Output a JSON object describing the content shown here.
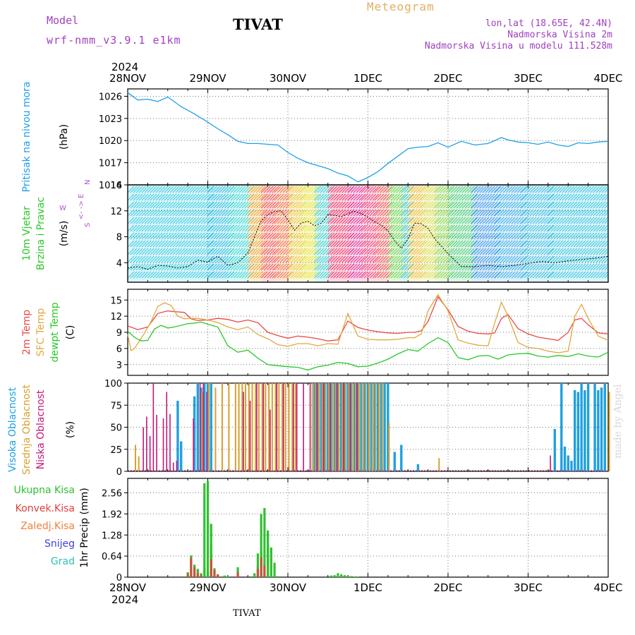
{
  "header": {
    "model_label": "Model",
    "model_name": "wrf-nmm_v3.9.1  e1km",
    "station": "TIVAT",
    "chart_title": "Meteogram",
    "lonlat": "lon,lat (18.65E, 42.4N)",
    "altitude": "Nadmorska Visina 2m",
    "model_altitude": "Nadmorska Visina u modelu 111.528m"
  },
  "footer": {
    "station": "TIVAT",
    "credit": "made by Angel"
  },
  "colors": {
    "pressure": "#1ea0e8",
    "temp2m": "#e84848",
    "sfc": "#e0a840",
    "dewpt": "#28c828",
    "cloud_high": "#20a0e0",
    "cloud_mid": "#d8a030",
    "cloud_low": "#c01878",
    "precip_total": "#30c030",
    "precip_conv": "#e04040",
    "precip_frozen": "#f08040",
    "snow": "#4040e0",
    "hail": "#30c0b0",
    "wind_dir_label": "#b050d0"
  },
  "chart_data": [
    {
      "type": "line",
      "name": "pressure",
      "title": "",
      "ylabel": "Pritisak na nivou mora",
      "yunit": "(hPa)",
      "ylim": [
        1014,
        1027
      ],
      "yticks": [
        1014,
        1017,
        1020,
        1023,
        1026
      ],
      "grid": true,
      "x_hours": [
        0,
        3,
        6,
        9,
        12,
        16,
        20,
        24,
        27,
        30,
        33,
        36,
        39,
        42,
        45,
        48,
        51,
        54,
        57,
        60,
        63,
        66,
        69,
        72,
        75,
        78,
        81,
        84,
        87,
        90,
        93,
        96,
        100,
        104,
        108,
        112,
        114,
        117,
        120,
        123,
        126,
        129,
        132,
        135,
        138,
        141,
        144
      ],
      "series": [
        {
          "values": [
            1026.5,
            1025.5,
            1025.6,
            1025.3,
            1025.9,
            1024.6,
            1023.6,
            1022.5,
            1021.6,
            1020.8,
            1019.9,
            1019.6,
            1019.6,
            1019.5,
            1019.4,
            1018.4,
            1017.6,
            1017.0,
            1016.6,
            1016.2,
            1015.6,
            1015.2,
            1014.4,
            1015.0,
            1015.8,
            1016.9,
            1017.9,
            1018.9,
            1019.1,
            1019.2,
            1019.7,
            1019.1,
            1019.9,
            1019.4,
            1019.6,
            1020.4,
            1020.1,
            1019.8,
            1019.7,
            1019.5,
            1019.8,
            1019.4,
            1019.2,
            1019.7,
            1019.6,
            1019.8,
            1019.9
          ]
        }
      ]
    },
    {
      "type": "line",
      "name": "wind",
      "title": "",
      "ylabel_lines": [
        "10m Vjetar",
        "Brzina i Pravac"
      ],
      "yunit": "(m/s)",
      "direction_label": [
        "W",
        "<- -> E",
        "S",
        "N"
      ],
      "ylim": [
        1,
        16
      ],
      "yticks": [
        4,
        8,
        12,
        16
      ],
      "grid": true,
      "x_hours": [
        0,
        3,
        6,
        9,
        12,
        15,
        18,
        21,
        24,
        27,
        30,
        33,
        36,
        38,
        40,
        42,
        44,
        46,
        48,
        50,
        52,
        54,
        56,
        58,
        60,
        62,
        64,
        66,
        68,
        70,
        72,
        74,
        76,
        78,
        80,
        82,
        84,
        86,
        88,
        90,
        92,
        96,
        100,
        104,
        108,
        112,
        116,
        120,
        124,
        128,
        132,
        136,
        140,
        144
      ],
      "series": [
        {
          "name": "speed",
          "values": [
            3.2,
            3.4,
            3.0,
            3.6,
            3.5,
            3.2,
            3.4,
            4.4,
            4.1,
            5.0,
            3.6,
            4.0,
            5.5,
            8.0,
            10.5,
            11.4,
            11.9,
            12.0,
            10.6,
            9.0,
            10.1,
            10.4,
            9.7,
            10.1,
            11.4,
            11.3,
            11.1,
            11.6,
            11.9,
            11.6,
            11.0,
            10.3,
            9.8,
            8.9,
            7.4,
            6.2,
            7.7,
            10.1,
            10.0,
            9.3,
            7.7,
            5.4,
            3.4,
            3.4,
            3.6,
            3.4,
            3.6,
            3.9,
            4.2,
            4.0,
            4.3,
            4.5,
            4.7,
            5.0
          ]
        }
      ]
    },
    {
      "type": "line",
      "name": "temperature",
      "title": "",
      "yunit": "(C)",
      "ylim": [
        1,
        17
      ],
      "yticks": [
        3,
        6,
        9,
        12,
        15
      ],
      "grid": true,
      "series": [
        {
          "name": "2m Temp",
          "x_hours": [
            0,
            3,
            6,
            9,
            12,
            13,
            15,
            17,
            19,
            21,
            24,
            27,
            30,
            33,
            36,
            39,
            42,
            45,
            48,
            51,
            54,
            57,
            60,
            63,
            66,
            69,
            72,
            75,
            78,
            81,
            84,
            86,
            88,
            90,
            93,
            96,
            99,
            102,
            105,
            108,
            110,
            112,
            114,
            117,
            120,
            123,
            126,
            129,
            132,
            134,
            136,
            138,
            141,
            144
          ],
          "values": [
            10.2,
            9.5,
            10.0,
            12.5,
            13.0,
            12.9,
            12.8,
            12.7,
            11.5,
            11.2,
            11.3,
            11.6,
            11.4,
            10.9,
            11.3,
            10.8,
            9.0,
            8.4,
            7.9,
            8.3,
            8.1,
            7.8,
            7.4,
            7.6,
            11.1,
            9.9,
            9.4,
            9.1,
            8.9,
            8.8,
            9.0,
            9.0,
            9.3,
            11.0,
            15.6,
            13.2,
            10.1,
            9.2,
            8.8,
            8.7,
            8.9,
            11.6,
            12.3,
            9.7,
            8.7,
            8.1,
            7.8,
            7.5,
            9.0,
            11.3,
            11.6,
            10.4,
            8.9,
            8.7
          ]
        },
        {
          "name": "SFC Temp",
          "x_hours": [
            0,
            1,
            2,
            3,
            5,
            7,
            9,
            11,
            13,
            15,
            17,
            19,
            21,
            24,
            27,
            30,
            33,
            36,
            39,
            42,
            45,
            48,
            51,
            54,
            57,
            60,
            63,
            66,
            69,
            72,
            75,
            78,
            81,
            84,
            86,
            88,
            90,
            93,
            96,
            99,
            102,
            105,
            108,
            110,
            112,
            114,
            117,
            120,
            123,
            126,
            129,
            132,
            134,
            136,
            138,
            141,
            144
          ],
          "values": [
            8.6,
            5.6,
            6.0,
            6.9,
            8.8,
            11.0,
            13.8,
            14.5,
            14.0,
            12.0,
            11.5,
            11.6,
            11.6,
            11.3,
            10.8,
            10.0,
            9.5,
            10.0,
            8.6,
            7.8,
            6.7,
            6.4,
            6.9,
            6.9,
            6.5,
            6.9,
            6.8,
            12.5,
            8.3,
            7.7,
            7.6,
            7.6,
            7.7,
            8.0,
            8.0,
            8.7,
            13.0,
            16.0,
            13.0,
            7.6,
            7.0,
            6.6,
            6.5,
            10.8,
            14.6,
            12.0,
            7.1,
            6.2,
            6.0,
            5.5,
            5.2,
            5.5,
            12.0,
            14.2,
            11.6,
            8.3,
            7.5
          ]
        },
        {
          "name": "dewpt Temp",
          "x_hours": [
            0,
            2,
            4,
            6,
            8,
            10,
            12,
            14,
            16,
            18,
            20,
            22,
            24,
            27,
            30,
            33,
            36,
            39,
            42,
            45,
            48,
            51,
            54,
            57,
            60,
            63,
            66,
            69,
            72,
            75,
            78,
            81,
            84,
            87,
            90,
            93,
            96,
            99,
            102,
            105,
            108,
            111,
            114,
            117,
            120,
            123,
            126,
            129,
            132,
            135,
            138,
            141,
            144
          ],
          "values": [
            9.2,
            8.1,
            7.4,
            7.5,
            9.6,
            10.3,
            9.8,
            10.0,
            10.3,
            10.6,
            10.7,
            10.9,
            10.5,
            10.0,
            6.5,
            5.3,
            5.7,
            4.2,
            3.0,
            2.8,
            2.6,
            2.5,
            2.0,
            2.6,
            2.9,
            3.4,
            3.2,
            2.6,
            2.7,
            3.3,
            4.0,
            5.0,
            5.8,
            5.5,
            6.9,
            8.0,
            7.1,
            4.3,
            3.9,
            4.6,
            4.7,
            4.0,
            4.8,
            5.0,
            5.1,
            4.6,
            4.4,
            4.7,
            4.5,
            5.0,
            4.6,
            4.4,
            5.3
          ]
        }
      ],
      "ylabel_series": [
        "2m Temp",
        "SFC Temp",
        "dewpt Temp"
      ]
    },
    {
      "type": "bar",
      "name": "cloudiness",
      "title": "",
      "yunit": "(%)",
      "ylim": [
        0,
        100
      ],
      "yticks": [
        0,
        25,
        50,
        75,
        100
      ],
      "grid": true,
      "series": [
        {
          "name": "Visoka Oblacnost",
          "x_hours": [
            15,
            16,
            20,
            21,
            22,
            23,
            24,
            25,
            56,
            57,
            58,
            59,
            60,
            61,
            62,
            63,
            64,
            65,
            66,
            67,
            68,
            69,
            70,
            71,
            72,
            73,
            74,
            75,
            76,
            77,
            78,
            80,
            82,
            87,
            128,
            130,
            131,
            132,
            133,
            134,
            135,
            136,
            137,
            138,
            140,
            141,
            142,
            143
          ],
          "values": [
            80,
            34,
            85,
            100,
            95,
            100,
            100,
            100,
            100,
            100,
            100,
            100,
            100,
            100,
            100,
            100,
            100,
            100,
            100,
            100,
            100,
            100,
            100,
            100,
            100,
            100,
            100,
            100,
            100,
            100,
            100,
            22,
            30,
            8,
            48,
            100,
            28,
            18,
            12,
            92,
            90,
            100,
            92,
            100,
            100,
            92,
            95,
            100
          ]
        },
        {
          "name": "Srednja Oblacnost",
          "x_hours": [
            2,
            3,
            22,
            24,
            26,
            28,
            30,
            32,
            33,
            34,
            35,
            36,
            37,
            38,
            39,
            40,
            41,
            42,
            43,
            44,
            45,
            46,
            47,
            48,
            49,
            50,
            55,
            56,
            57,
            58,
            59,
            60,
            61,
            62,
            63,
            64,
            65,
            66,
            67,
            68,
            69,
            70,
            71,
            72,
            73,
            74,
            75,
            76,
            78,
            93,
            144
          ],
          "values": [
            30,
            17,
            90,
            100,
            95,
            100,
            100,
            100,
            100,
            100,
            100,
            100,
            100,
            100,
            100,
            100,
            100,
            100,
            100,
            100,
            100,
            100,
            100,
            100,
            100,
            100,
            100,
            100,
            100,
            100,
            100,
            100,
            100,
            100,
            100,
            100,
            100,
            100,
            100,
            100,
            100,
            100,
            100,
            100,
            100,
            100,
            100,
            100,
            55,
            15,
            90
          ]
        },
        {
          "name": "Niska Oblacnost",
          "x_hours": [
            5,
            6,
            7,
            8,
            9,
            11,
            12,
            13,
            14,
            15,
            20,
            22,
            23,
            24,
            35,
            37,
            39,
            41,
            43,
            45,
            47,
            50,
            51,
            53,
            55,
            57,
            59,
            61,
            63,
            65,
            67,
            69,
            127
          ],
          "values": [
            50,
            62,
            40,
            100,
            64,
            60,
            90,
            65,
            10,
            12,
            60,
            100,
            100,
            90,
            90,
            80,
            100,
            100,
            70,
            100,
            100,
            100,
            100,
            100,
            100,
            100,
            100,
            100,
            100,
            100,
            100,
            100,
            18
          ]
        }
      ],
      "ylabel_series": [
        "Visoka Oblacnost",
        "Srednja Oblacnost",
        "Niska Oblacnost"
      ]
    },
    {
      "type": "bar",
      "name": "precipitation",
      "title": "",
      "yunit": "1hr Precip (mm)",
      "ylim": [
        0,
        3.0
      ],
      "yticks": [
        0,
        0.64,
        1.28,
        1.92,
        2.56
      ],
      "ytick_labels": [
        "0",
        "0.64",
        "1.28",
        "1.92",
        "2.56"
      ],
      "grid": true,
      "series": [
        {
          "name": "Ukupna Kisa",
          "x_hours": [
            18,
            19,
            20,
            21,
            22,
            23,
            24,
            25,
            26,
            27,
            29,
            30,
            33,
            38,
            39,
            40,
            41,
            42,
            43,
            44,
            45,
            61,
            62,
            63,
            64,
            65,
            66,
            67,
            68,
            69
          ],
          "values": [
            0.15,
            0.66,
            0.38,
            0.25,
            0.12,
            0.28,
            0.16,
            0.98,
            0.27,
            0.09,
            0.05,
            0.03,
            0.3,
            0.12,
            0.35,
            0.8,
            0.48,
            1.0,
            0.9,
            0.44,
            0.03,
            0.05,
            0.06,
            0.12,
            0.09,
            0.06,
            0.03,
            0.03,
            0.02,
            0.02
          ]
        },
        {
          "name": "Ukupna Kisa (peaks)",
          "x_hours": [
            23,
            24,
            25,
            39,
            40,
            41,
            42
          ],
          "values": [
            2.85,
            2.92,
            1.62,
            0.72,
            1.92,
            2.1,
            1.42
          ]
        },
        {
          "name": "Konvek.Kisa",
          "x_hours": [
            18,
            19,
            20,
            21,
            22,
            25,
            26,
            27,
            33,
            39,
            40,
            41
          ],
          "values": [
            0.1,
            0.58,
            0.3,
            0.12,
            0.07,
            0.55,
            0.22,
            0.08,
            0.15,
            0.25,
            0.6,
            0.35
          ]
        }
      ],
      "legend": [
        "Ukupna Kisa",
        "Konvek.Kisa",
        "Zaledj.Kisa",
        "Snijeg",
        "Grad"
      ]
    }
  ],
  "time_axis": {
    "year": "2024",
    "labels": [
      "28NOV",
      "29NOV",
      "30NOV",
      "1DEC",
      "2DEC",
      "3DEC",
      "4DEC"
    ],
    "hours": [
      0,
      24,
      48,
      72,
      96,
      120,
      144
    ]
  }
}
